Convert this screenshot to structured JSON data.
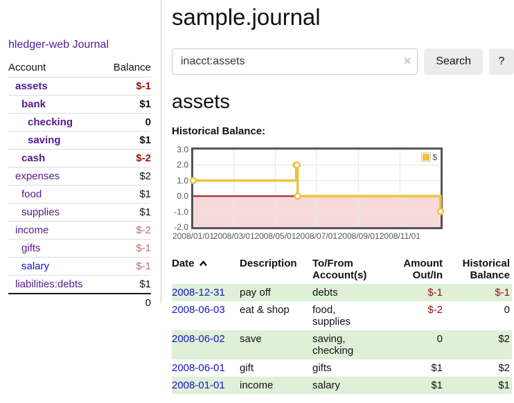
{
  "app": {
    "title": "hledger-web"
  },
  "nav": {
    "journal_label": "Journal"
  },
  "sidebar": {
    "table": {
      "account_header": "Account",
      "balance_header": "Balance"
    },
    "accounts": [
      {
        "name": "assets",
        "depth": 1,
        "bold": true,
        "balance": "$-1",
        "balance_style": "neg-strong"
      },
      {
        "name": "bank",
        "depth": 2,
        "bold": true,
        "balance": "$1",
        "balance_style": "pos"
      },
      {
        "name": "checking",
        "depth": 3,
        "bold": true,
        "balance": "0",
        "balance_style": "pos"
      },
      {
        "name": "saving",
        "depth": 3,
        "bold": true,
        "balance": "$1",
        "balance_style": "pos"
      },
      {
        "name": "cash",
        "depth": 2,
        "bold": true,
        "balance": "$-2",
        "balance_style": "neg-strong"
      },
      {
        "name": "expenses",
        "depth": 1,
        "bold": false,
        "balance": "$2",
        "balance_style": "pos"
      },
      {
        "name": "food",
        "depth": 2,
        "bold": false,
        "balance": "$1",
        "balance_style": "pos"
      },
      {
        "name": "supplies",
        "depth": 2,
        "bold": false,
        "balance": "$1",
        "balance_style": "pos"
      },
      {
        "name": "income",
        "depth": 1,
        "bold": false,
        "balance": "$-2",
        "balance_style": "neg-soft"
      },
      {
        "name": "gifts",
        "depth": 2,
        "bold": false,
        "balance": "$-1",
        "balance_style": "neg-soft"
      },
      {
        "name": "salary",
        "depth": 2,
        "bold": false,
        "balance": "$-1",
        "balance_style": "neg-soft",
        "link_style": "blue"
      },
      {
        "name": "liabilities:debts",
        "depth": 1,
        "bold": false,
        "balance": "$1",
        "balance_style": "pos"
      }
    ],
    "total": "0"
  },
  "header": {
    "title": "sample.journal"
  },
  "search": {
    "value": "inacct:assets",
    "clear_icon": "×",
    "button_label": "Search",
    "help_label": "?"
  },
  "account_page": {
    "title": "assets",
    "chart_label": "Historical Balance:"
  },
  "chart_data": {
    "type": "line",
    "title": "Historical Balance",
    "steps": true,
    "series": [
      {
        "name": "$",
        "color": "#edc240",
        "points": [
          {
            "date": "2008/01/01",
            "day": 0,
            "value": 1
          },
          {
            "date": "2008/06/01",
            "day": 152,
            "value": 2
          },
          {
            "date": "2008/06/02",
            "day": 153,
            "value": 2
          },
          {
            "date": "2008/06/03",
            "day": 154,
            "value": 0
          },
          {
            "date": "2008/12/31",
            "day": 365,
            "value": -1
          }
        ]
      }
    ],
    "ylim": [
      -2,
      3
    ],
    "yticks": [
      {
        "label": "3.0",
        "value": 3
      },
      {
        "label": "2.0",
        "value": 2
      },
      {
        "label": "1.0",
        "value": 1
      },
      {
        "label": "0.0",
        "value": 0
      },
      {
        "label": "-1.0",
        "value": -1
      },
      {
        "label": "-2.0",
        "value": -2
      }
    ],
    "xlim_days": [
      0,
      365
    ],
    "xticks": [
      {
        "label": "2008/01/01",
        "day": 0
      },
      {
        "label": "2008/03/01",
        "day": 60
      },
      {
        "label": "2008/05/01",
        "day": 121
      },
      {
        "label": "2008/07/01",
        "day": 182
      },
      {
        "label": "2008/09/01",
        "day": 244
      },
      {
        "label": "2008/11/01",
        "day": 305
      }
    ],
    "legend": {
      "label": "$",
      "position": "top-right"
    },
    "grid": true,
    "colors": {
      "line": "#edc240",
      "marker_fill": "#ffffff",
      "negative_region": "#f8d9d9",
      "zero_line": "#8b1c1c",
      "gridline": "#e6e6e6",
      "border": "#545454"
    }
  },
  "register": {
    "header": {
      "date": "Date",
      "sort_direction": "asc",
      "description": "Description",
      "tofrom_line1": "To/From",
      "tofrom_line2": "Account(s)",
      "amount_line1": "Amount",
      "amount_line2": "Out/In",
      "balance_line1": "Historical",
      "balance_line2": "Balance"
    },
    "rows": [
      {
        "date": "2008-12-31",
        "description": "pay off",
        "accounts": "debts",
        "amount": "$-1",
        "balance": "$-1"
      },
      {
        "date": "2008-06-03",
        "description": "eat & shop",
        "accounts": "food, supplies",
        "amount": "$-2",
        "balance": "0"
      },
      {
        "date": "2008-06-02",
        "description": "save",
        "accounts": "saving, checking",
        "amount": "0",
        "balance": "$2"
      },
      {
        "date": "2008-06-01",
        "description": "gift",
        "accounts": "gifts",
        "amount": "$1",
        "balance": "$2"
      },
      {
        "date": "2008-01-01",
        "description": "income",
        "accounts": "salary",
        "amount": "$1",
        "balance": "$1"
      }
    ]
  }
}
